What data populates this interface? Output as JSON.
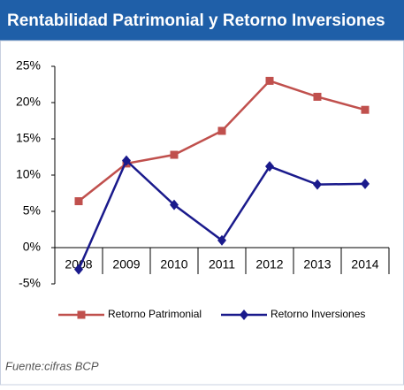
{
  "chart_data": {
    "type": "line",
    "title": "Rentabilidad Patrimonial y Retorno Inversiones",
    "categories": [
      "2008",
      "2009",
      "2010",
      "2011",
      "2012",
      "2013",
      "2014"
    ],
    "series": [
      {
        "name": "Retorno Patrimonial",
        "color": "#c0504d",
        "marker": "square",
        "values": [
          6.4,
          11.6,
          12.8,
          16.1,
          23.0,
          20.8,
          19.0
        ]
      },
      {
        "name": "Retorno Inversiones",
        "color": "#1a1a8c",
        "marker": "diamond",
        "values": [
          -3.0,
          12.0,
          5.9,
          1.0,
          11.2,
          8.7,
          8.8
        ]
      }
    ],
    "ylim": [
      -5,
      25
    ],
    "yticks": [
      {
        "value": 25,
        "label": "25%"
      },
      {
        "value": 20,
        "label": "20%"
      },
      {
        "value": 15,
        "label": "15%"
      },
      {
        "value": 10,
        "label": "10%"
      },
      {
        "value": 5,
        "label": "5%"
      },
      {
        "value": 0,
        "label": "0%"
      },
      {
        "value": -5,
        "label": "-5%"
      }
    ],
    "legend": "bottom",
    "source": "Fuente:cifras BCP"
  }
}
